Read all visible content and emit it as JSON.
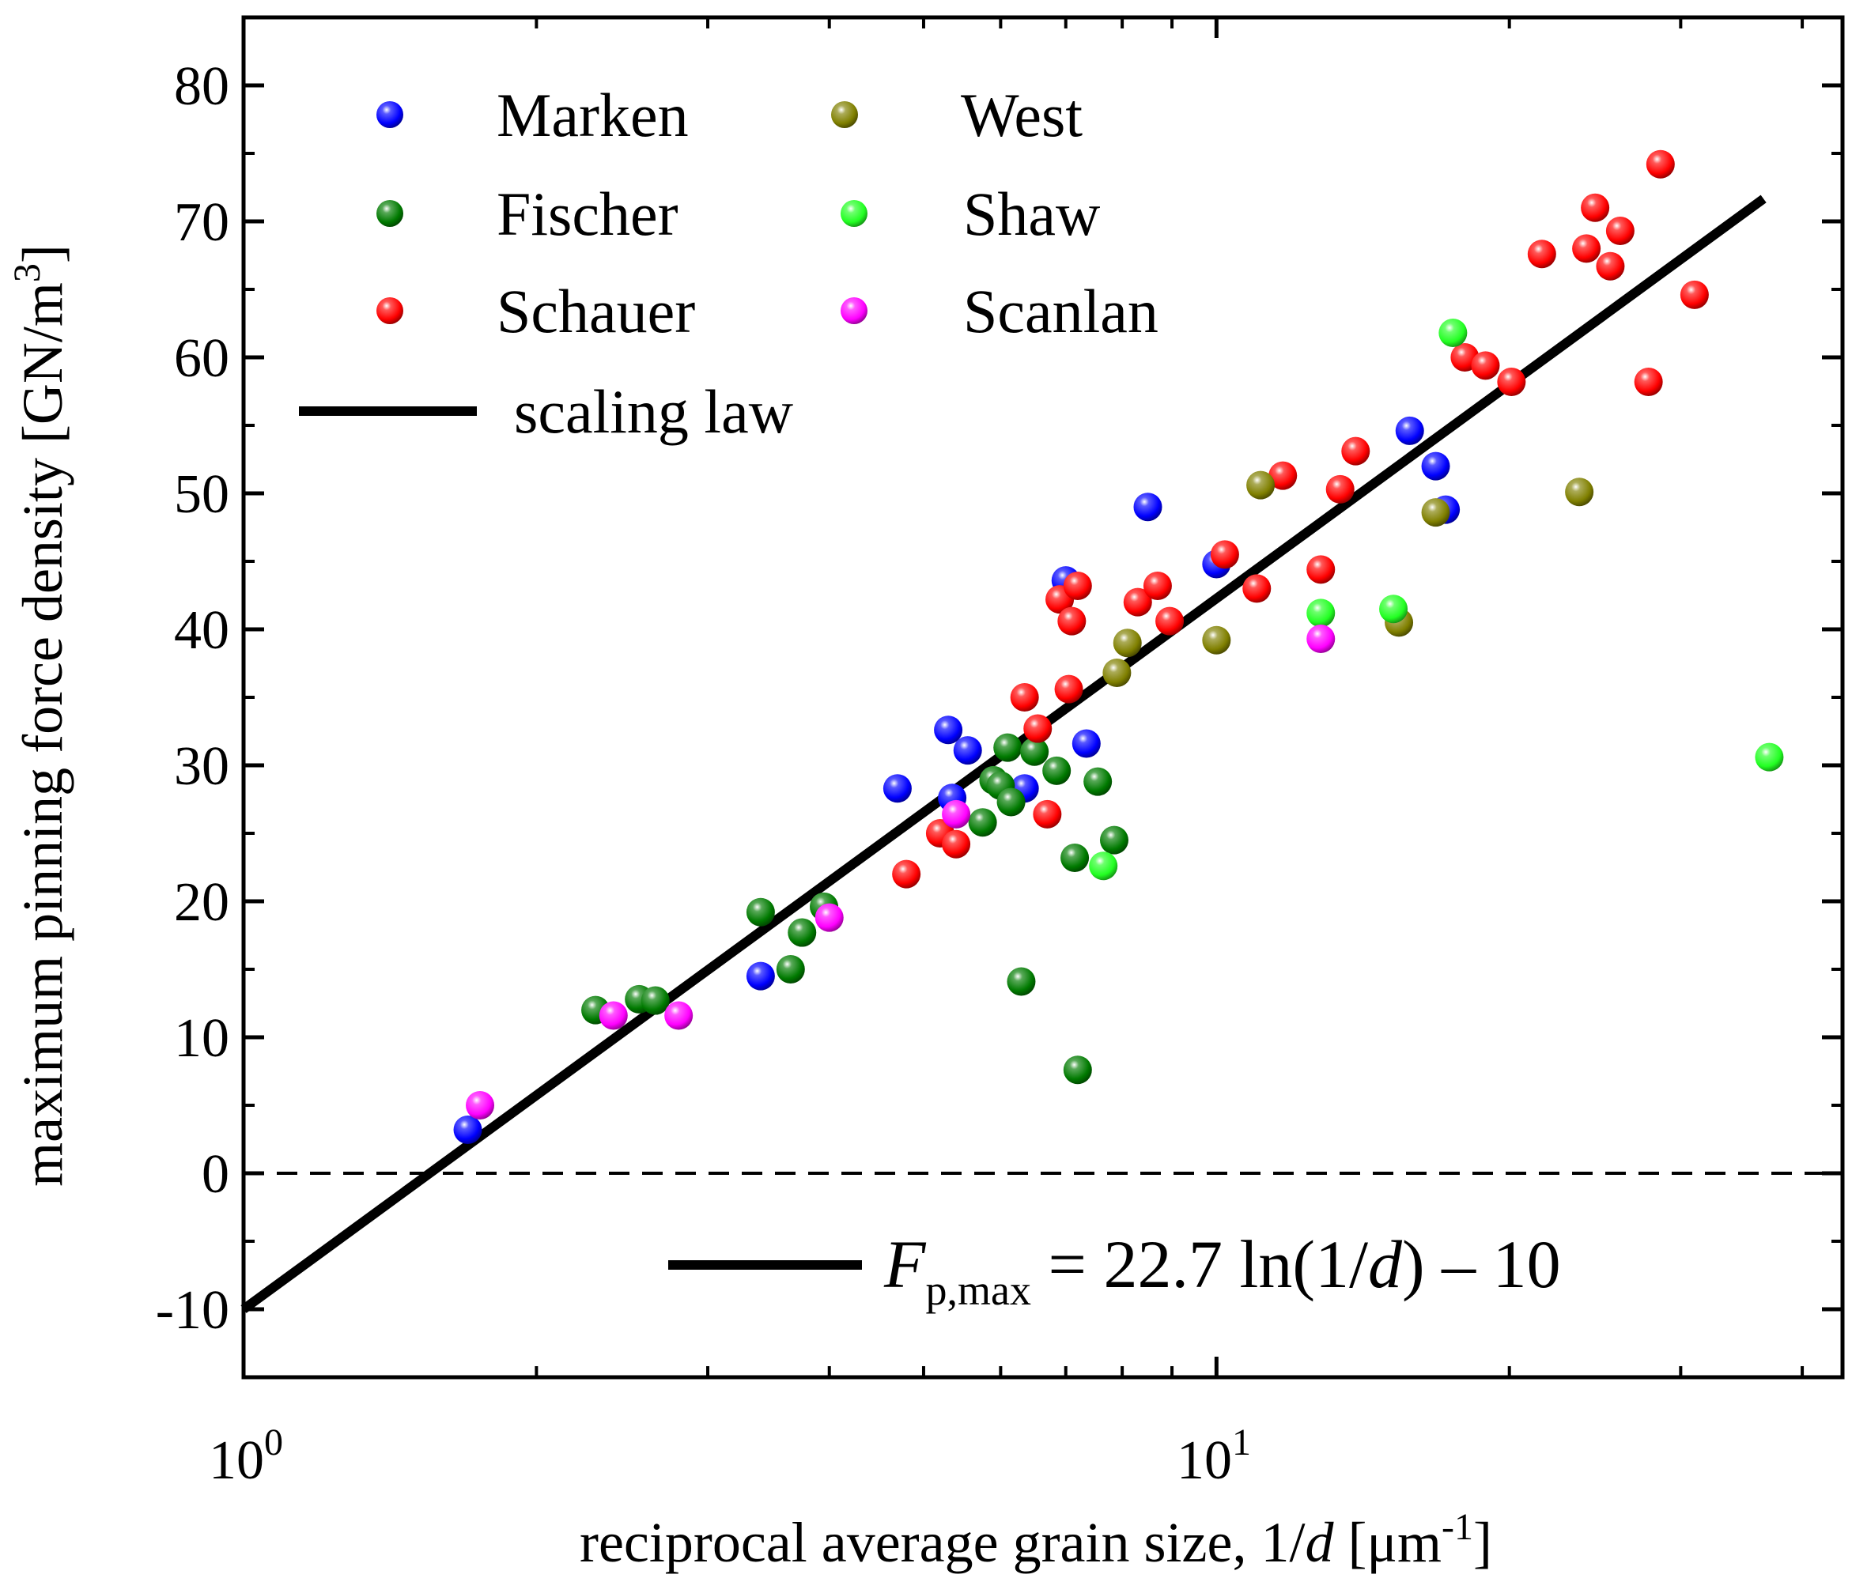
{
  "chart_data": {
    "type": "scatter",
    "x_scale": "log",
    "xlim": [
      1,
      44
    ],
    "ylim": [
      -15,
      85
    ],
    "yticks": [
      -10,
      0,
      10,
      20,
      30,
      40,
      50,
      60,
      70,
      80
    ],
    "ytick_labels": [
      "-10",
      "0",
      "10",
      "20",
      "30",
      "40",
      "50",
      "60",
      "70",
      "80"
    ],
    "xticks_major": [
      1,
      10
    ],
    "xtick_labels": [
      {
        "base": "10",
        "exp": "0"
      },
      {
        "base": "10",
        "exp": "1"
      }
    ],
    "xticks_minor": [
      2,
      3,
      4,
      5,
      6,
      7,
      8,
      9,
      20,
      30,
      40
    ],
    "yticks_minor": [
      -15,
      -5,
      5,
      15,
      25,
      35,
      45,
      55,
      65,
      75,
      85
    ],
    "xlabel": {
      "text": "reciprocal average grain size, 1/",
      "var": "d",
      "unit": " [μm",
      "exp": "-1",
      "close": "]"
    },
    "ylabel": {
      "text": "maximum pinning force density [GN/m",
      "exp": "3",
      "close": "]"
    },
    "fit": {
      "label": "scaling law",
      "slope": 22.7,
      "intercept": -10,
      "x_range": [
        1,
        36.5
      ],
      "equation": {
        "F": "F",
        "sub": "p,max",
        "rest": " = 22.7 ln(1/",
        "d": "d",
        "tail": ") – 10"
      }
    },
    "reference_line": {
      "y": 0,
      "style": "dashed"
    },
    "series": [
      {
        "name": "Marken",
        "color": "#0000ff",
        "points": [
          [
            1.7,
            3.2
          ],
          [
            3.4,
            14.5
          ],
          [
            4.7,
            28.3
          ],
          [
            5.3,
            32.6
          ],
          [
            5.35,
            27.6
          ],
          [
            5.55,
            31.1
          ],
          [
            6.35,
            28.3
          ],
          [
            7.0,
            43.6
          ],
          [
            7.35,
            31.6
          ],
          [
            8.5,
            49.0
          ],
          [
            10.0,
            44.8
          ],
          [
            15.8,
            54.6
          ],
          [
            16.8,
            52.0
          ],
          [
            17.2,
            48.8
          ]
        ]
      },
      {
        "name": "Fischer",
        "color": "#007a00",
        "points": [
          [
            2.3,
            12.0
          ],
          [
            2.55,
            12.8
          ],
          [
            2.65,
            12.7
          ],
          [
            3.4,
            19.2
          ],
          [
            3.65,
            15.0
          ],
          [
            3.75,
            17.7
          ],
          [
            3.95,
            19.6
          ],
          [
            5.75,
            25.8
          ],
          [
            5.9,
            28.9
          ],
          [
            6.0,
            28.5
          ],
          [
            6.1,
            31.3
          ],
          [
            6.15,
            27.3
          ],
          [
            6.3,
            14.1
          ],
          [
            6.5,
            31.0
          ],
          [
            6.85,
            29.6
          ],
          [
            7.15,
            23.2
          ],
          [
            7.2,
            7.6
          ],
          [
            7.55,
            28.8
          ],
          [
            7.85,
            24.5
          ]
        ]
      },
      {
        "name": "Schauer",
        "color": "#ff0000",
        "points": [
          [
            4.8,
            22.0
          ],
          [
            5.2,
            25.0
          ],
          [
            5.4,
            24.2
          ],
          [
            6.35,
            35.0
          ],
          [
            6.55,
            32.7
          ],
          [
            6.7,
            26.4
          ],
          [
            6.9,
            42.2
          ],
          [
            7.05,
            35.6
          ],
          [
            7.1,
            40.6
          ],
          [
            7.2,
            43.2
          ],
          [
            8.3,
            42.0
          ],
          [
            8.7,
            43.2
          ],
          [
            8.95,
            40.6
          ],
          [
            10.2,
            45.5
          ],
          [
            11.0,
            43.0
          ],
          [
            11.7,
            51.3
          ],
          [
            12.8,
            44.4
          ],
          [
            13.4,
            50.3
          ],
          [
            13.9,
            53.1
          ],
          [
            18.0,
            60.0
          ],
          [
            18.9,
            59.4
          ],
          [
            20.1,
            58.2
          ],
          [
            21.6,
            67.6
          ],
          [
            24.0,
            68.0
          ],
          [
            24.5,
            71.0
          ],
          [
            25.4,
            66.7
          ],
          [
            26.0,
            69.3
          ],
          [
            27.8,
            58.2
          ],
          [
            28.6,
            74.2
          ],
          [
            31.0,
            64.6
          ]
        ]
      },
      {
        "name": "West",
        "color": "#808000",
        "points": [
          [
            7.9,
            36.8
          ],
          [
            8.1,
            39.0
          ],
          [
            10.0,
            39.2
          ],
          [
            11.1,
            50.6
          ],
          [
            15.4,
            40.5
          ],
          [
            16.8,
            48.6
          ],
          [
            23.6,
            50.1
          ]
        ]
      },
      {
        "name": "Shaw",
        "color": "#22ff22",
        "points": [
          [
            7.65,
            22.6
          ],
          [
            12.8,
            41.2
          ],
          [
            15.2,
            41.5
          ],
          [
            17.5,
            61.8
          ],
          [
            37.0,
            30.6
          ]
        ]
      },
      {
        "name": "Scanlan",
        "color": "#ff00ff",
        "points": [
          [
            1.75,
            5.0
          ],
          [
            2.4,
            11.6
          ],
          [
            2.8,
            11.6
          ],
          [
            4.0,
            18.8
          ],
          [
            5.4,
            26.4
          ],
          [
            12.8,
            39.3
          ]
        ]
      }
    ]
  }
}
